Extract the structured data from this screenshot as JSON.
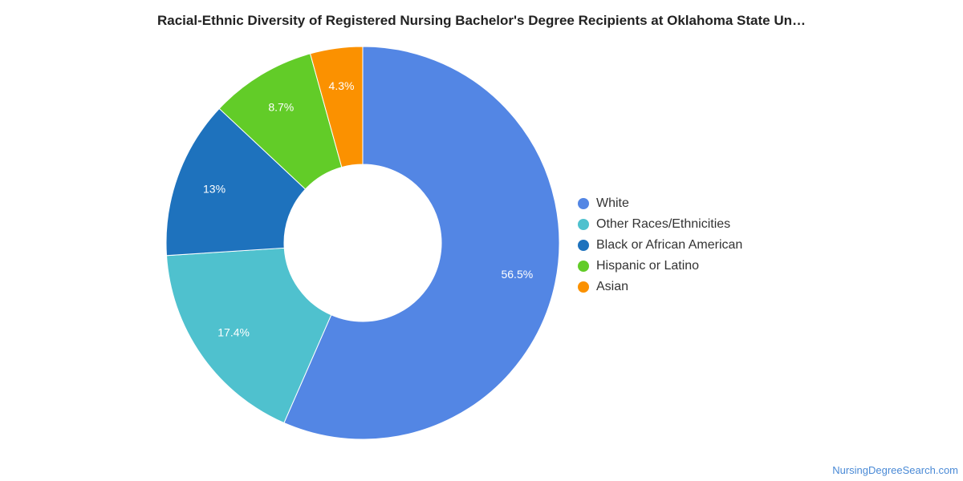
{
  "chart_data": {
    "type": "pie",
    "subtype": "donut",
    "title": "Racial-Ethnic Diversity of Registered Nursing Bachelor's Degree Recipients at Oklahoma State Un…",
    "legend_position": "right",
    "slices": [
      {
        "name": "White",
        "value": 56.5,
        "label": "56.5%",
        "color": "#5386e4"
      },
      {
        "name": "Other Races/Ethnicities",
        "value": 17.4,
        "label": "17.4%",
        "color": "#4fc1ce"
      },
      {
        "name": "Black or African American",
        "value": 13,
        "label": "13%",
        "color": "#1e72bd"
      },
      {
        "name": "Hispanic or Latino",
        "value": 8.7,
        "label": "8.7%",
        "color": "#62cc28"
      },
      {
        "name": "Asian",
        "value": 4.3,
        "label": "4.3%",
        "color": "#fb9100"
      }
    ]
  },
  "watermark": "NursingDegreeSearch.com"
}
